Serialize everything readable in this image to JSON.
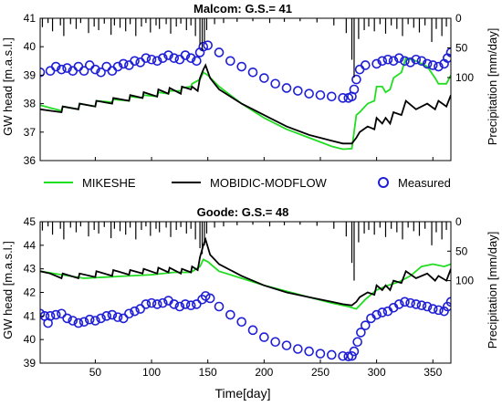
{
  "legend": {
    "items": [
      {
        "label": "MIKESHE",
        "color": "#22dd22",
        "kind": "line"
      },
      {
        "label": "MOBIDIC-MODFLOW",
        "color": "#000000",
        "kind": "line"
      },
      {
        "label": "Measured",
        "color": "#1f1fd6",
        "kind": "circle"
      }
    ]
  },
  "chart_data": [
    {
      "type": "line",
      "title": "Malcom: G.S.= 41",
      "xlabel": "",
      "ylabel": "GW head [m.a.s.l.]",
      "ylabel_right": "Precipitation [mm/day]",
      "xlim": [
        1,
        366
      ],
      "ylim": [
        36,
        41
      ],
      "yticks": [
        36,
        37,
        38,
        39,
        40,
        41
      ],
      "ylim_right": [
        0,
        240
      ],
      "right_axis_inverted": true,
      "yticks_right": [
        0,
        50,
        100
      ],
      "xticks": [
        50,
        100,
        150,
        200,
        250,
        300,
        350
      ],
      "show_xticklabels": false,
      "grid": false,
      "series": [
        {
          "name": "MIKESHE",
          "color": "#22dd22",
          "x": [
            1,
            10,
            20,
            21,
            35,
            36,
            50,
            51,
            65,
            66,
            80,
            81,
            92,
            93,
            105,
            106,
            115,
            116,
            126,
            127,
            135,
            136,
            143,
            146,
            150,
            160,
            180,
            200,
            220,
            240,
            260,
            270,
            278,
            282,
            285,
            292,
            298,
            300,
            305,
            308,
            312,
            315,
            322,
            326,
            335,
            345,
            352,
            355,
            362,
            366
          ],
          "y": [
            37.95,
            37.85,
            37.75,
            37.9,
            37.8,
            38.0,
            37.9,
            38.1,
            38.05,
            38.15,
            38.1,
            38.25,
            38.2,
            38.3,
            38.25,
            38.4,
            38.35,
            38.45,
            38.45,
            38.55,
            38.6,
            38.7,
            38.85,
            39.1,
            39.0,
            38.6,
            38.0,
            37.5,
            37.1,
            36.8,
            36.5,
            36.4,
            36.42,
            37.6,
            37.7,
            38.0,
            38.1,
            38.6,
            38.6,
            38.4,
            38.5,
            38.9,
            39.1,
            39.6,
            39.5,
            39.3,
            38.9,
            38.7,
            38.7,
            39.0
          ]
        },
        {
          "name": "MOBIDIC-MODFLOW",
          "color": "#000000",
          "x": [
            1,
            10,
            20,
            21,
            35,
            36,
            50,
            51,
            65,
            66,
            80,
            81,
            92,
            93,
            105,
            106,
            115,
            116,
            126,
            127,
            135,
            136,
            141,
            143,
            146,
            148,
            152,
            160,
            180,
            200,
            220,
            240,
            260,
            270,
            278,
            282,
            285,
            292,
            298,
            300,
            305,
            308,
            312,
            315,
            322,
            326,
            335,
            345,
            352,
            355,
            362,
            366
          ],
          "y": [
            37.8,
            37.75,
            37.7,
            37.9,
            37.8,
            38.0,
            37.9,
            38.1,
            38.0,
            38.2,
            38.1,
            38.3,
            38.2,
            38.4,
            38.25,
            38.5,
            38.35,
            38.55,
            38.35,
            38.6,
            38.5,
            38.6,
            38.45,
            38.9,
            39.2,
            39.35,
            38.9,
            38.5,
            38.0,
            37.6,
            37.2,
            36.9,
            36.7,
            36.6,
            36.6,
            36.8,
            37.0,
            37.2,
            37.1,
            37.5,
            37.3,
            37.5,
            37.3,
            37.7,
            37.6,
            38.1,
            37.8,
            38.0,
            37.8,
            38.1,
            37.9,
            38.3
          ]
        },
        {
          "name": "Measured",
          "color": "#1f1fd6",
          "marker": "circle",
          "x": [
            1,
            10,
            15,
            20,
            25,
            30,
            35,
            40,
            45,
            50,
            55,
            60,
            65,
            70,
            75,
            80,
            85,
            90,
            95,
            100,
            105,
            110,
            115,
            120,
            125,
            130,
            135,
            140,
            143,
            146,
            150,
            160,
            170,
            180,
            190,
            200,
            210,
            220,
            230,
            240,
            250,
            260,
            270,
            275,
            278,
            280,
            282,
            285,
            290,
            300,
            305,
            310,
            315,
            320,
            325,
            330,
            335,
            340,
            345,
            350,
            355,
            360,
            363,
            366
          ],
          "y": [
            39.1,
            39.15,
            39.3,
            39.2,
            39.25,
            39.15,
            39.3,
            39.15,
            39.35,
            39.2,
            39.1,
            39.3,
            39.15,
            39.3,
            39.4,
            39.35,
            39.5,
            39.45,
            39.6,
            39.55,
            39.5,
            39.6,
            39.7,
            39.6,
            39.55,
            39.7,
            39.6,
            39.5,
            39.8,
            40.0,
            40.05,
            39.8,
            39.5,
            39.3,
            39.1,
            38.9,
            38.7,
            38.55,
            38.45,
            38.35,
            38.3,
            38.25,
            38.2,
            38.2,
            38.25,
            38.5,
            38.85,
            39.2,
            39.35,
            39.4,
            39.5,
            39.55,
            39.5,
            39.6,
            39.5,
            39.45,
            39.55,
            39.5,
            39.4,
            39.35,
            39.3,
            39.4,
            39.6,
            39.8
          ]
        },
        {
          "name": "Precipitation",
          "color": "#000000",
          "type": "bar",
          "axis": "right",
          "x": [
            3,
            8,
            12,
            19,
            22,
            28,
            33,
            37,
            44,
            49,
            53,
            58,
            64,
            67,
            72,
            77,
            81,
            86,
            91,
            95,
            99,
            104,
            107,
            113,
            117,
            122,
            126,
            131,
            135,
            139,
            143,
            145,
            147,
            149,
            156,
            164,
            176,
            190,
            205,
            218,
            232,
            247,
            262,
            273,
            278,
            280,
            284,
            289,
            293,
            298,
            303,
            308,
            313,
            318,
            323,
            328,
            333,
            338,
            343,
            349,
            353,
            358,
            362
          ],
          "y": [
            15,
            8,
            22,
            12,
            30,
            10,
            18,
            8,
            25,
            14,
            20,
            9,
            28,
            12,
            16,
            22,
            10,
            30,
            14,
            8,
            24,
            12,
            18,
            10,
            26,
            14,
            9,
            20,
            12,
            30,
            45,
            55,
            40,
            20,
            10,
            8,
            6,
            5,
            8,
            6,
            5,
            7,
            12,
            25,
            70,
            100,
            35,
            20,
            14,
            22,
            10,
            26,
            12,
            18,
            30,
            10,
            16,
            24,
            12,
            40,
            18,
            30,
            14
          ]
        }
      ]
    },
    {
      "type": "line",
      "title": "Goode: G.S.= 48",
      "xlabel": "Time[day]",
      "ylabel": "GW head [m.a.s.l.]",
      "ylabel_right": "Precipitation [mm/day]",
      "xlim": [
        1,
        366
      ],
      "ylim": [
        39,
        45
      ],
      "yticks": [
        39,
        40,
        41,
        42,
        43,
        44,
        45
      ],
      "ylim_right": [
        0,
        240
      ],
      "right_axis_inverted": true,
      "yticks_right": [
        0,
        50,
        100
      ],
      "xticks": [
        50,
        100,
        150,
        200,
        250,
        300,
        350
      ],
      "show_xticklabels": true,
      "grid": false,
      "series": [
        {
          "name": "MIKESHE",
          "color": "#22dd22",
          "x": [
            1,
            20,
            40,
            60,
            80,
            100,
            120,
            135,
            143,
            146,
            150,
            160,
            180,
            200,
            220,
            240,
            260,
            275,
            282,
            290,
            300,
            310,
            320,
            330,
            340,
            350,
            360,
            366
          ],
          "y": [
            42.9,
            42.75,
            42.6,
            42.65,
            42.7,
            42.75,
            42.85,
            42.85,
            43.1,
            43.4,
            43.3,
            42.9,
            42.6,
            42.3,
            42.05,
            41.8,
            41.55,
            41.4,
            41.3,
            41.7,
            42.1,
            42.3,
            42.45,
            42.7,
            43.1,
            43.2,
            43.1,
            43.2
          ]
        },
        {
          "name": "MOBIDIC-MODFLOW",
          "color": "#000000",
          "x": [
            1,
            10,
            20,
            21,
            35,
            36,
            50,
            51,
            65,
            66,
            80,
            81,
            92,
            93,
            105,
            106,
            115,
            116,
            126,
            127,
            135,
            136,
            141,
            143,
            146,
            148,
            152,
            160,
            180,
            200,
            220,
            240,
            260,
            270,
            278,
            282,
            285,
            292,
            298,
            300,
            305,
            308,
            312,
            315,
            322,
            326,
            335,
            345,
            352,
            355,
            362,
            366
          ],
          "y": [
            42.9,
            42.8,
            42.6,
            42.8,
            42.6,
            42.8,
            42.65,
            42.9,
            42.7,
            42.95,
            42.75,
            42.95,
            42.8,
            43.0,
            42.8,
            43.05,
            42.85,
            43.05,
            42.8,
            43.0,
            42.85,
            43.1,
            42.95,
            43.5,
            44.0,
            44.25,
            43.6,
            43.2,
            42.7,
            42.3,
            42.0,
            41.8,
            41.6,
            41.5,
            41.45,
            41.6,
            41.8,
            42.0,
            41.9,
            42.3,
            42.1,
            42.3,
            42.1,
            42.5,
            42.4,
            42.9,
            42.6,
            42.8,
            42.5,
            42.7,
            42.5,
            43.0
          ]
        },
        {
          "name": "Measured",
          "color": "#1f1fd6",
          "marker": "circle",
          "x": [
            1,
            5,
            8,
            10,
            15,
            20,
            25,
            30,
            35,
            40,
            45,
            50,
            55,
            60,
            65,
            70,
            75,
            80,
            85,
            90,
            95,
            100,
            105,
            110,
            115,
            120,
            125,
            130,
            135,
            140,
            145,
            148,
            152,
            160,
            170,
            180,
            190,
            200,
            210,
            220,
            230,
            240,
            250,
            260,
            270,
            275,
            278,
            280,
            283,
            286,
            290,
            295,
            300,
            305,
            310,
            315,
            320,
            325,
            330,
            335,
            340,
            345,
            350,
            355,
            360,
            363,
            366
          ],
          "y": [
            41.1,
            41.0,
            40.7,
            41.0,
            41.05,
            41.1,
            40.9,
            40.8,
            40.7,
            40.75,
            40.85,
            40.8,
            40.9,
            41.0,
            41.05,
            40.95,
            40.9,
            41.1,
            41.2,
            41.3,
            41.5,
            41.55,
            41.5,
            41.55,
            41.65,
            41.5,
            41.4,
            41.5,
            41.45,
            41.5,
            41.7,
            41.85,
            41.75,
            41.4,
            41.05,
            40.75,
            40.4,
            40.1,
            39.9,
            39.75,
            39.6,
            39.5,
            39.4,
            39.35,
            39.3,
            39.28,
            39.3,
            39.5,
            39.9,
            40.3,
            40.6,
            40.9,
            41.05,
            41.15,
            41.2,
            41.35,
            41.5,
            41.6,
            41.55,
            41.5,
            41.45,
            41.4,
            41.3,
            41.25,
            41.2,
            41.4,
            41.6
          ]
        },
        {
          "name": "Precipitation",
          "color": "#000000",
          "type": "bar",
          "axis": "right",
          "x": [
            3,
            8,
            12,
            19,
            22,
            28,
            33,
            37,
            44,
            49,
            53,
            58,
            64,
            67,
            72,
            77,
            81,
            86,
            91,
            95,
            99,
            104,
            107,
            113,
            117,
            122,
            126,
            131,
            135,
            139,
            143,
            145,
            147,
            149,
            156,
            164,
            176,
            190,
            205,
            218,
            232,
            247,
            262,
            273,
            278,
            280,
            284,
            289,
            293,
            298,
            303,
            308,
            313,
            318,
            323,
            328,
            333,
            338,
            343,
            349,
            353,
            358,
            362
          ],
          "y": [
            15,
            8,
            22,
            12,
            30,
            10,
            18,
            8,
            25,
            14,
            20,
            9,
            28,
            12,
            16,
            22,
            10,
            30,
            14,
            8,
            24,
            12,
            18,
            10,
            26,
            14,
            9,
            20,
            12,
            30,
            45,
            55,
            40,
            20,
            10,
            8,
            6,
            5,
            8,
            6,
            5,
            7,
            12,
            25,
            70,
            100,
            35,
            20,
            14,
            22,
            10,
            26,
            12,
            18,
            30,
            10,
            16,
            24,
            12,
            40,
            18,
            30,
            14
          ]
        }
      ]
    }
  ]
}
